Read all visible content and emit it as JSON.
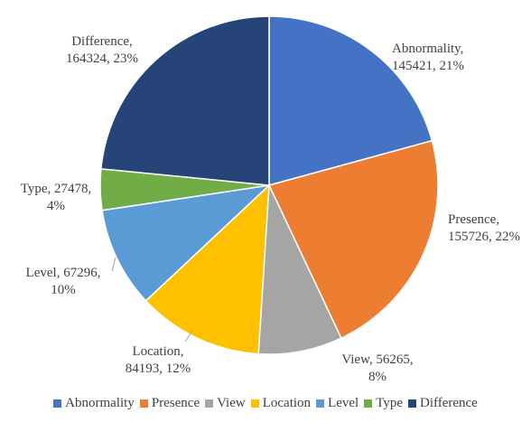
{
  "chart_data": {
    "type": "pie",
    "title": "",
    "slices": [
      {
        "name": "Abnormality",
        "value": 145421,
        "percent": "21%",
        "color": "#4472C4",
        "label_lines": [
          "Abnormality,",
          "145421, 21%"
        ]
      },
      {
        "name": "Presence",
        "value": 155726,
        "percent": "22%",
        "color": "#ED7D31",
        "label_lines": [
          "Presence,",
          "155726, 22%"
        ]
      },
      {
        "name": "View",
        "value": 56265,
        "percent": "8%",
        "color": "#A5A5A5",
        "label_lines": [
          "View, 56265,",
          "8%"
        ]
      },
      {
        "name": "Location",
        "value": 84193,
        "percent": "12%",
        "color": "#FFC000",
        "label_lines": [
          "Location,",
          "84193, 12%"
        ]
      },
      {
        "name": "Level",
        "value": 67296,
        "percent": "10%",
        "color": "#5B9BD5",
        "label_lines": [
          "Level, 67296,",
          "10%"
        ]
      },
      {
        "name": "Type",
        "value": 27478,
        "percent": "4%",
        "color": "#70AD47",
        "label_lines": [
          "Type, 27478,",
          "4%"
        ]
      },
      {
        "name": "Difference",
        "value": 164324,
        "percent": "23%",
        "color": "#264478",
        "label_lines": [
          "Difference,",
          "164324, 23%"
        ]
      }
    ],
    "start_angle_deg": 0,
    "direction": "clockwise",
    "legend_position": "bottom",
    "legend": [
      "Abnormality",
      "Presence",
      "View",
      "Location",
      "Level",
      "Type",
      "Difference"
    ]
  }
}
